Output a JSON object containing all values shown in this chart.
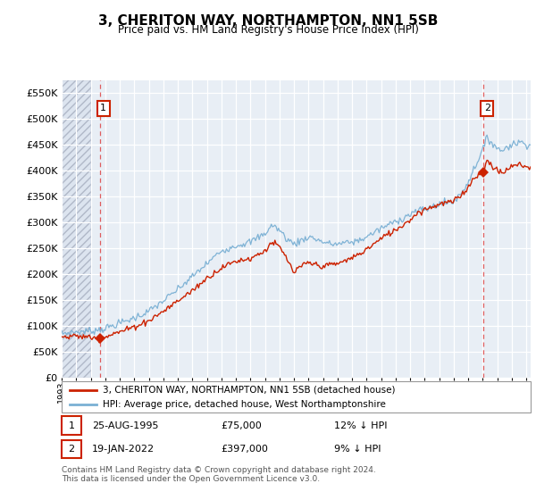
{
  "title": "3, CHERITON WAY, NORTHAMPTON, NN1 5SB",
  "subtitle": "Price paid vs. HM Land Registry's House Price Index (HPI)",
  "background_color": "#ffffff",
  "plot_bg_color": "#e8eef5",
  "hpi_color": "#7ab0d4",
  "price_color": "#cc2200",
  "vline_color": "#dd4444",
  "box_edge_color": "#cc2200",
  "ylim": [
    0,
    575000
  ],
  "yticks": [
    0,
    50000,
    100000,
    150000,
    200000,
    250000,
    300000,
    350000,
    400000,
    450000,
    500000,
    550000
  ],
  "ytick_labels": [
    "£0",
    "£50K",
    "£100K",
    "£150K",
    "£200K",
    "£250K",
    "£300K",
    "£350K",
    "£400K",
    "£450K",
    "£500K",
    "£550K"
  ],
  "sale1_date_num": 1995.63,
  "sale1_price": 75000,
  "sale1_label": "1",
  "sale1_date_str": "25-AUG-1995",
  "sale1_price_str": "£75,000",
  "sale1_hpi_str": "12% ↓ HPI",
  "sale2_date_num": 2022.05,
  "sale2_price": 397000,
  "sale2_label": "2",
  "sale2_date_str": "19-JAN-2022",
  "sale2_price_str": "£397,000",
  "sale2_hpi_str": "9% ↓ HPI",
  "legend_label1": "3, CHERITON WAY, NORTHAMPTON, NN1 5SB (detached house)",
  "legend_label2": "HPI: Average price, detached house, West Northamptonshire",
  "footnote": "Contains HM Land Registry data © Crown copyright and database right 2024.\nThis data is licensed under the Open Government Licence v3.0.",
  "xmin": 1993.0,
  "xmax": 2025.3
}
